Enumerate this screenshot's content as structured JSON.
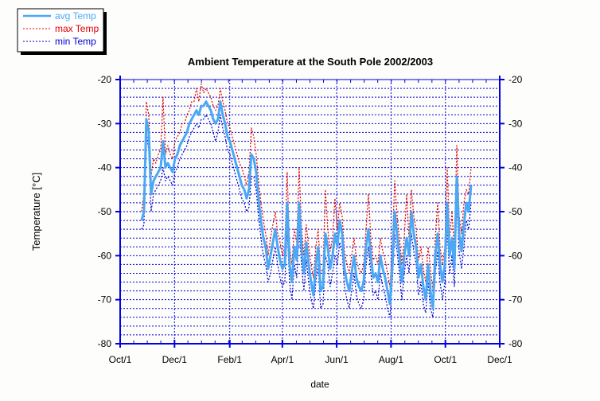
{
  "chart_data": {
    "type": "line",
    "title": "Ambient Temperature at the South Pole 2002/2003",
    "xlabel": "date",
    "ylabel": "Temperature [°C]",
    "ylim": [
      -80,
      -20
    ],
    "yticks": [
      "-20",
      "-30",
      "-40",
      "-50",
      "-60",
      "-70",
      "-80"
    ],
    "ytick_values": [
      -20,
      -30,
      -40,
      -50,
      -60,
      -70,
      -80
    ],
    "xlim_days_from_2002_10_01": [
      0,
      426
    ],
    "xticks": [
      "Oct/1",
      "Dec/1",
      "Feb/1",
      "Apr/1",
      "Jun/1",
      "Aug/1",
      "Oct/1",
      "Dec/1"
    ],
    "xtick_days": [
      0,
      61,
      123,
      182,
      243,
      304,
      365,
      426
    ],
    "grid": true,
    "legend_placement": "top-left",
    "x_start_day": 24,
    "x_step_days": 2.68,
    "series": [
      {
        "name": "avg Temp",
        "color": "#4aa8f5",
        "style": "solid",
        "values": [
          -52,
          -50,
          -29,
          -32,
          -46,
          -43,
          -42,
          -41,
          -40,
          -34,
          -40,
          -39,
          -40,
          -41,
          -38,
          -37,
          -35,
          -34,
          -33,
          -32,
          -30,
          -29,
          -28,
          -27,
          -28,
          -26,
          -26,
          -25,
          -26,
          -27,
          -29,
          -30,
          -29,
          -25,
          -28,
          -30,
          -33,
          -34,
          -36,
          -38,
          -40,
          -42,
          -44,
          -45,
          -47,
          -45,
          -37,
          -38,
          -41,
          -47,
          -52,
          -56,
          -58,
          -63,
          -60,
          -57,
          -54,
          -58,
          -61,
          -63,
          -62,
          -48,
          -62,
          -66,
          -58,
          -61,
          -48,
          -58,
          -64,
          -57,
          -62,
          -66,
          -69,
          -62,
          -58,
          -68,
          -67,
          -55,
          -58,
          -63,
          -60,
          -55,
          -58,
          -52,
          -55,
          -63,
          -66,
          -68,
          -64,
          -60,
          -65,
          -67,
          -68,
          -66,
          -58,
          -54,
          -60,
          -65,
          -64,
          -66,
          -60,
          -63,
          -65,
          -68,
          -71,
          -62,
          -50,
          -55,
          -60,
          -66,
          -60,
          -56,
          -60,
          -50,
          -55,
          -58,
          -65,
          -62,
          -67,
          -70,
          -62,
          -68,
          -72,
          -60,
          -55,
          -62,
          -66,
          -62,
          -48,
          -60,
          -56,
          -63,
          -42,
          -55,
          -59,
          -53,
          -48,
          -50,
          -44
        ]
      },
      {
        "name": "max Temp",
        "color": "#e00000",
        "style": "dotted",
        "values": [
          -50,
          -46,
          -25,
          -28,
          -42,
          -38,
          -39,
          -37,
          -36,
          -24,
          -37,
          -35,
          -37,
          -38,
          -34,
          -33,
          -32,
          -30,
          -30,
          -28,
          -27,
          -25,
          -25,
          -22,
          -25,
          -21,
          -23,
          -22,
          -23,
          -24,
          -26,
          -27,
          -26,
          -22,
          -25,
          -27,
          -30,
          -31,
          -33,
          -35,
          -37,
          -39,
          -40,
          -42,
          -44,
          -41,
          -31,
          -33,
          -37,
          -43,
          -48,
          -52,
          -55,
          -60,
          -56,
          -53,
          -50,
          -55,
          -57,
          -60,
          -58,
          -41,
          -58,
          -62,
          -54,
          -57,
          -40,
          -54,
          -60,
          -53,
          -58,
          -62,
          -65,
          -58,
          -54,
          -64,
          -63,
          -45,
          -54,
          -59,
          -56,
          -47,
          -54,
          -48,
          -51,
          -59,
          -62,
          -64,
          -60,
          -56,
          -61,
          -63,
          -64,
          -62,
          -54,
          -46,
          -56,
          -61,
          -60,
          -62,
          -56,
          -59,
          -61,
          -64,
          -67,
          -58,
          -43,
          -51,
          -56,
          -62,
          -56,
          -46,
          -56,
          -45,
          -51,
          -54,
          -61,
          -58,
          -63,
          -66,
          -58,
          -63,
          -68,
          -56,
          -48,
          -58,
          -62,
          -58,
          -40,
          -56,
          -50,
          -59,
          -35,
          -51,
          -55,
          -48,
          -45,
          -46,
          -40
        ]
      },
      {
        "name": "min Temp",
        "color": "#0000d0",
        "style": "dotted",
        "values": [
          -54,
          -53,
          -32,
          -36,
          -50,
          -46,
          -45,
          -44,
          -43,
          -40,
          -43,
          -42,
          -43,
          -44,
          -41,
          -40,
          -38,
          -37,
          -36,
          -35,
          -33,
          -32,
          -31,
          -30,
          -31,
          -29,
          -29,
          -28,
          -29,
          -30,
          -32,
          -34,
          -32,
          -28,
          -31,
          -33,
          -36,
          -37,
          -39,
          -41,
          -43,
          -45,
          -47,
          -48,
          -50,
          -49,
          -42,
          -42,
          -45,
          -51,
          -56,
          -60,
          -62,
          -66,
          -64,
          -61,
          -58,
          -62,
          -65,
          -67,
          -66,
          -54,
          -66,
          -70,
          -62,
          -65,
          -54,
          -62,
          -68,
          -61,
          -66,
          -70,
          -72,
          -66,
          -62,
          -72,
          -71,
          -60,
          -62,
          -67,
          -64,
          -60,
          -62,
          -57,
          -59,
          -67,
          -70,
          -72,
          -68,
          -64,
          -69,
          -71,
          -72,
          -70,
          -62,
          -58,
          -64,
          -69,
          -68,
          -70,
          -64,
          -67,
          -69,
          -72,
          -74,
          -66,
          -55,
          -59,
          -64,
          -70,
          -64,
          -60,
          -64,
          -55,
          -59,
          -62,
          -69,
          -66,
          -71,
          -73,
          -66,
          -72,
          -74,
          -64,
          -59,
          -66,
          -70,
          -66,
          -54,
          -64,
          -60,
          -67,
          -48,
          -59,
          -63,
          -58,
          -52,
          -54,
          -48
        ]
      }
    ],
    "axis_color": "#0000e0"
  }
}
